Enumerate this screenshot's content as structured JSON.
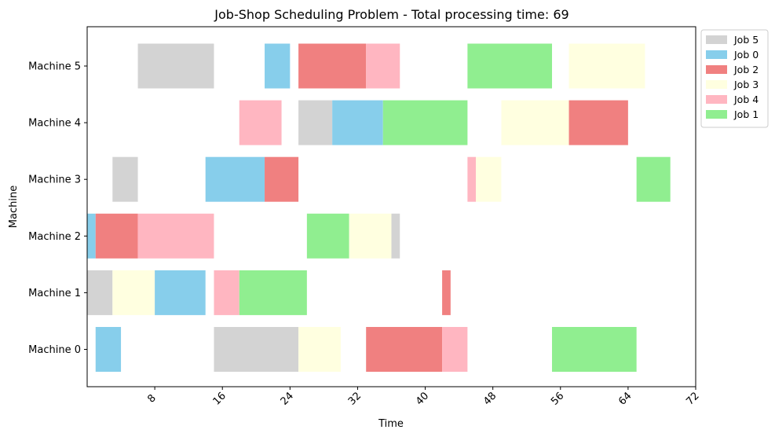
{
  "chart_data": {
    "type": "gantt",
    "title": "Job-Shop Scheduling Problem - Total processing time: 69",
    "xlabel": "Time",
    "ylabel": "Machine",
    "xlim": [
      0,
      72
    ],
    "xticks": [
      8,
      16,
      24,
      32,
      40,
      48,
      56,
      64,
      72
    ],
    "machines": [
      "Machine 0",
      "Machine 1",
      "Machine 2",
      "Machine 3",
      "Machine 4",
      "Machine 5"
    ],
    "legend_position": "outside-right",
    "grid": false,
    "jobs": [
      {
        "name": "Job 5",
        "color": "#d3d3d3"
      },
      {
        "name": "Job 0",
        "color": "#87ceeb"
      },
      {
        "name": "Job 2",
        "color": "#f08080"
      },
      {
        "name": "Job 3",
        "color": "#ffffe0"
      },
      {
        "name": "Job 4",
        "color": "#ffb6c1"
      },
      {
        "name": "Job 1",
        "color": "#90ee90"
      }
    ],
    "tasks": [
      {
        "job": "Job 0",
        "machine": 0,
        "start": 1,
        "end": 4
      },
      {
        "job": "Job 5",
        "machine": 0,
        "start": 15,
        "end": 25
      },
      {
        "job": "Job 3",
        "machine": 0,
        "start": 25,
        "end": 30
      },
      {
        "job": "Job 2",
        "machine": 0,
        "start": 33,
        "end": 42
      },
      {
        "job": "Job 4",
        "machine": 0,
        "start": 42,
        "end": 45
      },
      {
        "job": "Job 1",
        "machine": 0,
        "start": 55,
        "end": 65
      },
      {
        "job": "Job 5",
        "machine": 1,
        "start": 0,
        "end": 3
      },
      {
        "job": "Job 3",
        "machine": 1,
        "start": 3,
        "end": 8
      },
      {
        "job": "Job 0",
        "machine": 1,
        "start": 8,
        "end": 14
      },
      {
        "job": "Job 4",
        "machine": 1,
        "start": 15,
        "end": 18
      },
      {
        "job": "Job 1",
        "machine": 1,
        "start": 18,
        "end": 26
      },
      {
        "job": "Job 2",
        "machine": 1,
        "start": 42,
        "end": 43
      },
      {
        "job": "Job 0",
        "machine": 2,
        "start": 0,
        "end": 1
      },
      {
        "job": "Job 2",
        "machine": 2,
        "start": 1,
        "end": 6
      },
      {
        "job": "Job 4",
        "machine": 2,
        "start": 6,
        "end": 15
      },
      {
        "job": "Job 1",
        "machine": 2,
        "start": 26,
        "end": 31
      },
      {
        "job": "Job 3",
        "machine": 2,
        "start": 31,
        "end": 36
      },
      {
        "job": "Job 5",
        "machine": 2,
        "start": 36,
        "end": 37
      },
      {
        "job": "Job 5",
        "machine": 3,
        "start": 3,
        "end": 6
      },
      {
        "job": "Job 0",
        "machine": 3,
        "start": 14,
        "end": 21
      },
      {
        "job": "Job 2",
        "machine": 3,
        "start": 21,
        "end": 25
      },
      {
        "job": "Job 4",
        "machine": 3,
        "start": 45,
        "end": 46
      },
      {
        "job": "Job 3",
        "machine": 3,
        "start": 46,
        "end": 49
      },
      {
        "job": "Job 1",
        "machine": 3,
        "start": 65,
        "end": 69
      },
      {
        "job": "Job 4",
        "machine": 4,
        "start": 18,
        "end": 23
      },
      {
        "job": "Job 5",
        "machine": 4,
        "start": 25,
        "end": 29
      },
      {
        "job": "Job 0",
        "machine": 4,
        "start": 29,
        "end": 35
      },
      {
        "job": "Job 1",
        "machine": 4,
        "start": 35,
        "end": 45
      },
      {
        "job": "Job 3",
        "machine": 4,
        "start": 49,
        "end": 57
      },
      {
        "job": "Job 2",
        "machine": 4,
        "start": 57,
        "end": 64
      },
      {
        "job": "Job 5",
        "machine": 5,
        "start": 6,
        "end": 15
      },
      {
        "job": "Job 0",
        "machine": 5,
        "start": 21,
        "end": 24
      },
      {
        "job": "Job 2",
        "machine": 5,
        "start": 25,
        "end": 33
      },
      {
        "job": "Job 4",
        "machine": 5,
        "start": 33,
        "end": 37
      },
      {
        "job": "Job 1",
        "machine": 5,
        "start": 45,
        "end": 55
      },
      {
        "job": "Job 3",
        "machine": 5,
        "start": 57,
        "end": 66
      }
    ]
  }
}
